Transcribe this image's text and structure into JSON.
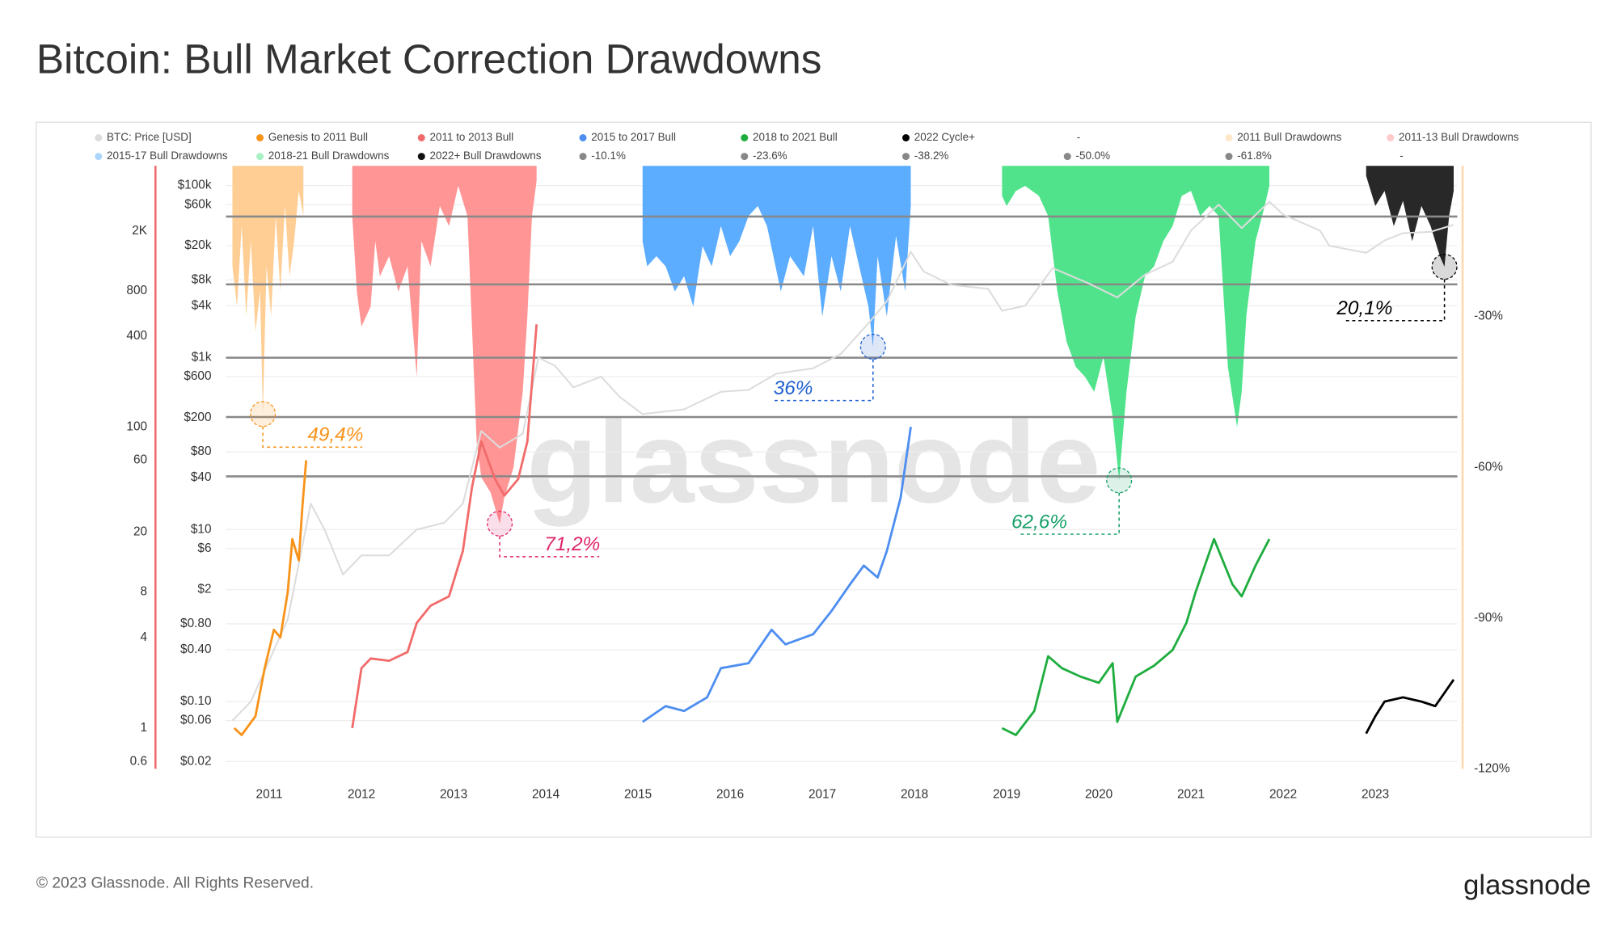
{
  "footer": "© 2023 Glassnode. All Rights Reserved.",
  "logo": "glassnode",
  "chart_data": {
    "type": "line",
    "title": "Bitcoin: Bull Market Correction Drawdowns",
    "watermark": "glassnode",
    "xlim": [
      2010.53,
      2023.89
    ],
    "xticks": [
      2011,
      2012,
      2013,
      2014,
      2015,
      2016,
      2017,
      2018,
      2019,
      2020,
      2021,
      2022,
      2023
    ],
    "ylim": [
      0.0165,
      170000
    ],
    "ylog": true,
    "yticks": [
      {
        "value": 100000,
        "label": "$100k"
      },
      {
        "value": 60000,
        "label": "$60k"
      },
      {
        "value": 20000,
        "label": "$20k"
      },
      {
        "value": 8000,
        "label": "$8k"
      },
      {
        "value": 4000,
        "label": "$4k"
      },
      {
        "value": 1000,
        "label": "$1k"
      },
      {
        "value": 600,
        "label": "$600"
      },
      {
        "value": 200,
        "label": "$200"
      },
      {
        "value": 80,
        "label": "$80"
      },
      {
        "value": 40,
        "label": "$40"
      },
      {
        "value": 10,
        "label": "$10"
      },
      {
        "value": 6,
        "label": "$6"
      },
      {
        "value": 2,
        "label": "$2"
      },
      {
        "value": 0.8,
        "label": "$0.80"
      },
      {
        "value": 0.4,
        "label": "$0.40"
      },
      {
        "value": 0.1,
        "label": "$0.10"
      },
      {
        "value": 0.06,
        "label": "$0.06"
      },
      {
        "value": 0.02,
        "label": "$0.02"
      }
    ],
    "y2lim": [
      0.537,
      5420
    ],
    "y2log": true,
    "y2ticks": [
      {
        "value": 2000,
        "label": "2K"
      },
      800,
      400,
      100,
      60,
      20,
      8,
      4,
      1,
      0.6
    ],
    "y3lim": [
      -120,
      0
    ],
    "y3ticks": [
      {
        "value": -30,
        "label": "-30%"
      },
      {
        "value": -60,
        "label": "-60%"
      },
      {
        "value": -90,
        "label": "-90%"
      },
      {
        "value": -120,
        "label": "-120%"
      }
    ],
    "grid": true,
    "series": [
      {
        "name": "BTC: Price [USD]",
        "type": "line",
        "color": "#dcdcdc",
        "axis": "y",
        "x": [
          2010.6,
          2010.8,
          2011.0,
          2011.2,
          2011.45,
          2011.6,
          2011.8,
          2012.0,
          2012.3,
          2012.6,
          2012.9,
          2013.1,
          2013.3,
          2013.5,
          2013.75,
          2013.92,
          2014.1,
          2014.3,
          2014.6,
          2014.8,
          2015.05,
          2015.5,
          2015.9,
          2016.2,
          2016.5,
          2016.9,
          2017.2,
          2017.5,
          2017.7,
          2017.96,
          2018.1,
          2018.4,
          2018.8,
          2018.95,
          2019.2,
          2019.5,
          2019.9,
          2020.2,
          2020.5,
          2020.8,
          2021.0,
          2021.3,
          2021.55,
          2021.85,
          2022.0,
          2022.4,
          2022.5,
          2022.9,
          2023.1,
          2023.3,
          2023.6,
          2023.85
        ],
        "values": [
          0.06,
          0.1,
          0.3,
          0.9,
          20,
          10,
          3,
          5,
          5,
          10,
          12,
          20,
          140,
          90,
          130,
          1000,
          800,
          450,
          600,
          350,
          220,
          250,
          400,
          420,
          650,
          750,
          1100,
          2500,
          4500,
          17000,
          10000,
          7000,
          6300,
          3500,
          4000,
          11000,
          7200,
          5000,
          9200,
          13000,
          30000,
          60000,
          32000,
          65000,
          46000,
          30000,
          20000,
          16500,
          23000,
          28000,
          29000,
          35000
        ]
      },
      {
        "name": "Genesis to 2011 Bull",
        "type": "line",
        "color": "#f7931a",
        "axis": "y2",
        "x": [
          2010.62,
          2010.7,
          2010.85,
          2010.95,
          2011.05,
          2011.12,
          2011.2,
          2011.25,
          2011.32,
          2011.36,
          2011.4
        ],
        "values": [
          1.0,
          0.9,
          1.2,
          2.5,
          4.5,
          4,
          8,
          18,
          13,
          30,
          60
        ]
      },
      {
        "name": "2011 to 2013 Bull",
        "type": "line",
        "color": "#f26b6b",
        "axis": "y2",
        "x": [
          2011.9,
          2012.0,
          2012.1,
          2012.3,
          2012.5,
          2012.6,
          2012.75,
          2012.95,
          2013.1,
          2013.2,
          2013.3,
          2013.45,
          2013.55,
          2013.7,
          2013.8,
          2013.9
        ],
        "values": [
          1.0,
          2.5,
          2.9,
          2.8,
          3.2,
          5,
          6.5,
          7.5,
          15,
          40,
          80,
          45,
          35,
          45,
          80,
          480
        ]
      },
      {
        "name": "2015 to 2017 Bull",
        "type": "line",
        "color": "#4d8ef0",
        "axis": "y2",
        "x": [
          2015.05,
          2015.3,
          2015.5,
          2015.75,
          2015.9,
          2016.2,
          2016.45,
          2016.6,
          2016.9,
          2017.1,
          2017.3,
          2017.45,
          2017.6,
          2017.7,
          2017.85,
          2017.96
        ],
        "values": [
          1.1,
          1.4,
          1.3,
          1.6,
          2.5,
          2.7,
          4.5,
          3.6,
          4.2,
          6,
          9,
          12,
          10,
          15,
          34,
          100
        ]
      },
      {
        "name": "2018 to 2021 Bull",
        "type": "line",
        "color": "#1fad3f",
        "axis": "y2",
        "x": [
          2018.95,
          2019.1,
          2019.3,
          2019.45,
          2019.6,
          2019.8,
          2020.0,
          2020.15,
          2020.2,
          2020.4,
          2020.6,
          2020.8,
          2020.95,
          2021.05,
          2021.15,
          2021.25,
          2021.45,
          2021.55,
          2021.7,
          2021.85
        ],
        "values": [
          1.0,
          0.9,
          1.3,
          3,
          2.5,
          2.2,
          2.0,
          2.7,
          1.1,
          2.2,
          2.6,
          3.3,
          5,
          8,
          12,
          18,
          9,
          7.5,
          12,
          18
        ]
      },
      {
        "name": "2022 Cycle+",
        "type": "line",
        "color": "#000000",
        "axis": "y2",
        "x": [
          2022.9,
          2023.0,
          2023.1,
          2023.3,
          2023.5,
          2023.65,
          2023.85
        ],
        "values": [
          0.92,
          1.2,
          1.5,
          1.6,
          1.5,
          1.4,
          2.1
        ]
      },
      {
        "name": "-",
        "type": "line",
        "axis": "y2",
        "x": [],
        "values": []
      },
      {
        "name": "2011 Bull Drawdowns",
        "type": "area",
        "color": "#ffc98a",
        "axis": "y3",
        "x": [
          2010.6,
          2010.65,
          2010.7,
          2010.75,
          2010.8,
          2010.85,
          2010.9,
          2010.93,
          2010.97,
          2011.02,
          2011.07,
          2011.12,
          2011.17,
          2011.22,
          2011.27,
          2011.32,
          2011.37
        ],
        "values": [
          -20,
          -28,
          -12,
          -30,
          -15,
          -33,
          -25,
          -49.4,
          -20,
          -30,
          -10,
          -25,
          -8,
          -22,
          -15,
          -5,
          -10
        ]
      },
      {
        "name": "2011-13 Bull Drawdowns",
        "type": "area",
        "color": "#ff8a8a",
        "axis": "y3",
        "x": [
          2011.9,
          2011.95,
          2012.0,
          2012.05,
          2012.1,
          2012.15,
          2012.2,
          2012.3,
          2012.4,
          2012.5,
          2012.6,
          2012.65,
          2012.75,
          2012.85,
          2012.95,
          2013.05,
          2013.15,
          2013.25,
          2013.3,
          2013.4,
          2013.5,
          2013.55,
          2013.65,
          2013.75,
          2013.8,
          2013.85,
          2013.9
        ],
        "values": [
          -10,
          -25,
          -32,
          -30,
          -28,
          -15,
          -22,
          -18,
          -25,
          -20,
          -42,
          -15,
          -20,
          -8,
          -12,
          -4,
          -10,
          -55,
          -62,
          -65,
          -71.2,
          -66,
          -60,
          -45,
          -30,
          -10,
          -3
        ]
      },
      {
        "name": "2015-17 Bull Drawdowns",
        "type": "area",
        "color": "#4aa3ff",
        "axis": "y3",
        "x": [
          2015.05,
          2015.1,
          2015.2,
          2015.3,
          2015.4,
          2015.5,
          2015.6,
          2015.7,
          2015.8,
          2015.9,
          2016.0,
          2016.1,
          2016.2,
          2016.3,
          2016.4,
          2016.55,
          2016.65,
          2016.8,
          2016.9,
          2017.0,
          2017.1,
          2017.2,
          2017.3,
          2017.4,
          2017.5,
          2017.55,
          2017.6,
          2017.7,
          2017.8,
          2017.9,
          2017.96
        ],
        "values": [
          -15,
          -20,
          -18,
          -20,
          -25,
          -22,
          -28,
          -16,
          -20,
          -12,
          -18,
          -15,
          -10,
          -8,
          -12,
          -25,
          -18,
          -22,
          -12,
          -30,
          -18,
          -25,
          -12,
          -20,
          -28,
          -36,
          -18,
          -30,
          -14,
          -25,
          -8
        ]
      },
      {
        "name": "2018-21 Bull Drawdowns",
        "type": "area",
        "color": "#3ee07f",
        "axis": "y3",
        "x": [
          2018.95,
          2019.0,
          2019.1,
          2019.2,
          2019.35,
          2019.45,
          2019.55,
          2019.65,
          2019.75,
          2019.85,
          2019.95,
          2020.05,
          2020.15,
          2020.22,
          2020.3,
          2020.4,
          2020.5,
          2020.6,
          2020.7,
          2020.8,
          2020.9,
          2021.0,
          2021.1,
          2021.2,
          2021.3,
          2021.4,
          2021.5,
          2021.55,
          2021.6,
          2021.7,
          2021.8,
          2021.85
        ],
        "values": [
          -6,
          -8,
          -5,
          -4,
          -6,
          -10,
          -25,
          -35,
          -40,
          -42,
          -45,
          -38,
          -50,
          -62.6,
          -45,
          -30,
          -22,
          -20,
          -15,
          -12,
          -6,
          -5,
          -10,
          -8,
          -10,
          -40,
          -52,
          -45,
          -30,
          -15,
          -8,
          -4
        ]
      },
      {
        "name": "2022+ Bull Drawdowns",
        "type": "area",
        "color": "#111111",
        "axis": "y3",
        "x": [
          2022.9,
          2023.0,
          2023.1,
          2023.2,
          2023.3,
          2023.4,
          2023.5,
          2023.6,
          2023.7,
          2023.75,
          2023.8,
          2023.85
        ],
        "values": [
          -2,
          -8,
          -5,
          -12,
          -7,
          -15,
          -8,
          -12,
          -18,
          -20.1,
          -10,
          -5
        ]
      },
      {
        "name": "-10.1%",
        "type": "hline",
        "color": "#888888",
        "axis": "y3",
        "values": [
          -10.1
        ]
      },
      {
        "name": "-23.6%",
        "type": "hline",
        "color": "#888888",
        "axis": "y3",
        "values": [
          -23.6
        ]
      },
      {
        "name": "-38.2%",
        "type": "hline",
        "color": "#888888",
        "axis": "y3",
        "values": [
          -38.2
        ]
      },
      {
        "name": "-50.0%",
        "type": "hline",
        "color": "#888888",
        "axis": "y3",
        "values": [
          -50.0
        ]
      },
      {
        "name": "-61.8%",
        "type": "hline",
        "color": "#888888",
        "axis": "y3",
        "values": [
          -61.8
        ]
      },
      {
        "name": "-",
        "type": "hline",
        "axis": "y3",
        "values": []
      }
    ],
    "annotations": [
      {
        "text": "49,4%",
        "x": 2010.93,
        "drawdown": 49.4,
        "color": "#f7931a"
      },
      {
        "text": "71,2%",
        "x": 2013.5,
        "drawdown": 71.2,
        "color": "#e0246a"
      },
      {
        "text": "36%",
        "x": 2017.55,
        "drawdown": 36,
        "color": "#1f5fd0"
      },
      {
        "text": "62,6%",
        "x": 2020.22,
        "drawdown": 62.6,
        "color": "#16a067"
      },
      {
        "text": "20,1%",
        "x": 2023.75,
        "drawdown": 20.1,
        "color": "#000000"
      }
    ]
  }
}
